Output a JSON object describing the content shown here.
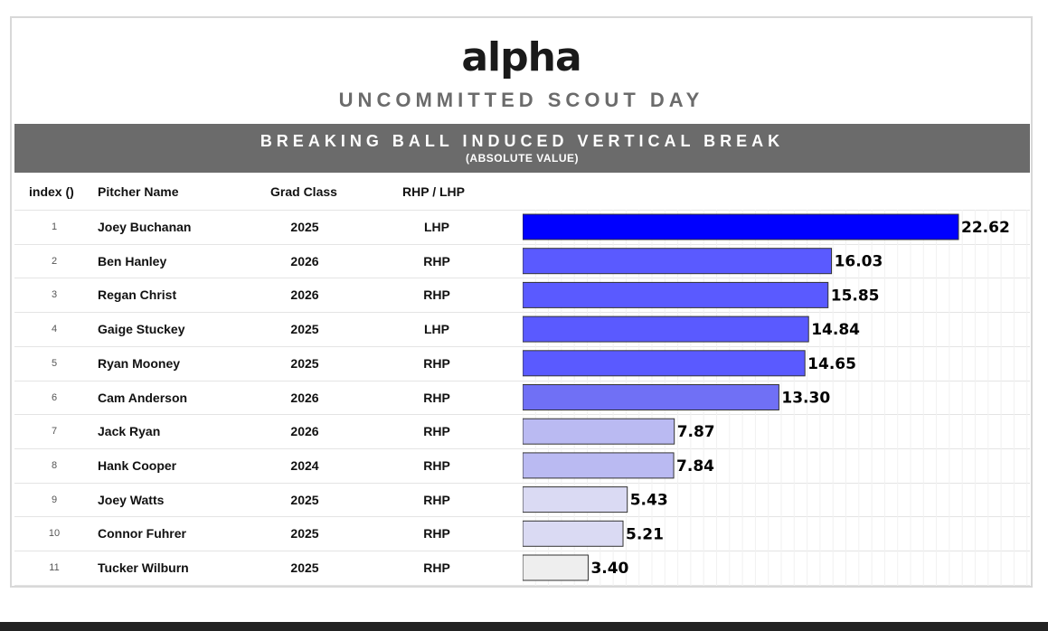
{
  "logo_text": "alpha",
  "subtitle": "UNCOMMITTED SCOUT DAY",
  "banner": {
    "title": "BREAKING BALL INDUCED VERTICAL BREAK",
    "subtitle": "(ABSOLUTE VALUE)"
  },
  "headers": {
    "index": "index ()",
    "pitcher": "Pitcher Name",
    "grad": "Grad Class",
    "hand": "RHP / LHP"
  },
  "colors": {
    "max": "#0000ff",
    "high": "#5a5aff",
    "mid": "#7070f5",
    "low": "#babaf2",
    "lower": "#dadaf3",
    "min": "#eeeeee"
  },
  "chart_data": {
    "type": "bar",
    "orientation": "horizontal",
    "title": "BREAKING BALL INDUCED VERTICAL BREAK",
    "subtitle": "(ABSOLUTE VALUE)",
    "xlim": [
      0,
      24
    ],
    "grid": true,
    "categories": [
      "Joey Buchanan",
      "Ben Hanley",
      "Regan Christ",
      "Gaige Stuckey",
      "Ryan Mooney",
      "Cam Anderson",
      "Jack Ryan",
      "Hank Cooper",
      "Joey Watts",
      "Connor Fuhrer",
      "Tucker Wilburn"
    ],
    "values": [
      22.62,
      16.03,
      15.85,
      14.84,
      14.65,
      13.3,
      7.87,
      7.84,
      5.43,
      5.21,
      3.4
    ],
    "labels": [
      "22.62",
      "16.03",
      "15.85",
      "14.84",
      "14.65",
      "13.30",
      "7.87",
      "7.84",
      "5.43",
      "5.21",
      "3.40"
    ]
  },
  "rows": [
    {
      "index": "1",
      "name": "Joey Buchanan",
      "grad": "2025",
      "hand": "LHP"
    },
    {
      "index": "2",
      "name": "Ben Hanley",
      "grad": "2026",
      "hand": "RHP"
    },
    {
      "index": "3",
      "name": "Regan Christ",
      "grad": "2026",
      "hand": "RHP"
    },
    {
      "index": "4",
      "name": "Gaige Stuckey",
      "grad": "2025",
      "hand": "LHP"
    },
    {
      "index": "5",
      "name": "Ryan Mooney",
      "grad": "2025",
      "hand": "RHP"
    },
    {
      "index": "6",
      "name": "Cam Anderson",
      "grad": "2026",
      "hand": "RHP"
    },
    {
      "index": "7",
      "name": "Jack Ryan",
      "grad": "2026",
      "hand": "RHP"
    },
    {
      "index": "8",
      "name": "Hank Cooper",
      "grad": "2024",
      "hand": "RHP"
    },
    {
      "index": "9",
      "name": "Joey Watts",
      "grad": "2025",
      "hand": "RHP"
    },
    {
      "index": "10",
      "name": "Connor Fuhrer",
      "grad": "2025",
      "hand": "RHP"
    },
    {
      "index": "11",
      "name": "Tucker Wilburn",
      "grad": "2025",
      "hand": "RHP"
    }
  ]
}
